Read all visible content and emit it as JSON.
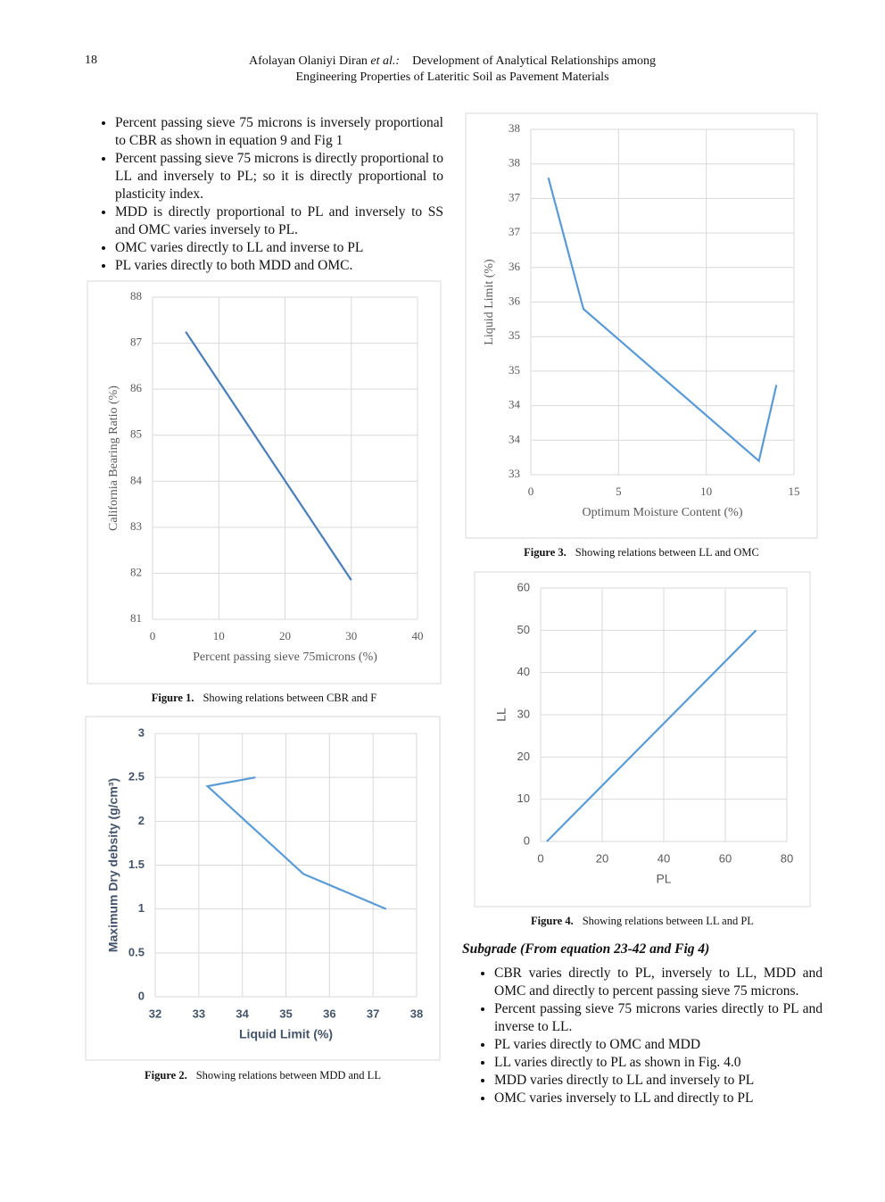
{
  "header": {
    "page_number": "18",
    "authors": "Afolayan Olaniyi Diran",
    "et_al": "et al.:",
    "title_lines": [
      "Development of Analytical Relationships among",
      "Engineering Properties of Lateritic Soil as Pavement Materials"
    ]
  },
  "left_bullets": [
    "Percent passing sieve 75 microns is inversely proportional to CBR as shown in equation 9 and Fig 1",
    "Percent passing sieve 75 microns is directly proportional to LL and inversely to PL; so it is directly proportional to plasticity index.",
    "MDD is directly proportional to PL and inversely to SS and OMC varies inversely to PL.",
    "OMC varies directly to LL and inverse to PL",
    "PL varies directly to both MDD and OMC."
  ],
  "subgrade": {
    "heading": "Subgrade (From equation 23-42 and Fig 4)",
    "bullets": [
      "CBR varies directly to PL, inversely to LL, MDD and OMC and directly to percent passing sieve 75 microns.",
      "Percent passing sieve 75 microns varies directly to PL and inverse to LL.",
      "PL varies directly to OMC and MDD",
      "LL varies directly to PL as shown in Fig. 4.0",
      "MDD varies directly to LL and inversely to PL",
      "OMC varies inversely to LL and directly to PL"
    ]
  },
  "chart_data": [
    {
      "type": "line",
      "caption_label": "Figure 1.",
      "caption": "Showing relations between CBR and F",
      "x_label": "Percent passing sieve 75microns (%)",
      "y_label": "California Bearing Ratio (%)",
      "x": [
        5,
        30
      ],
      "values": [
        87.25,
        81.85
      ],
      "color": "#4a7ebb",
      "xlim": [
        0,
        40
      ],
      "xticks": [
        0,
        10,
        20,
        30,
        40
      ],
      "ylim": [
        81,
        88
      ],
      "yticks": [
        81,
        82,
        83,
        84,
        85,
        86,
        87,
        88
      ],
      "grid": true
    },
    {
      "type": "line",
      "caption_label": "Figure 2.",
      "caption": "Showing relations between MDD and LL",
      "x_label": "Liquid Limit (%)",
      "y_label": "Maximum Dry debsity (g/cm³)",
      "x": [
        34.3,
        33.2,
        35.4,
        37.3
      ],
      "values": [
        2.5,
        2.4,
        1.4,
        1.0
      ],
      "color": "#5b9bd5",
      "xlim": [
        32,
        38
      ],
      "xticks": [
        32,
        33,
        34,
        35,
        36,
        37,
        38
      ],
      "ylim": [
        0,
        3
      ],
      "yticks": [
        0,
        0.5,
        1,
        1.5,
        2,
        2.5,
        3
      ],
      "grid": true
    },
    {
      "type": "line",
      "caption_label": "Figure 3.",
      "caption": "Showing relations between LL and OMC",
      "x_label": "Optimum Moisture Content (%)",
      "y_label": "Liquid Limit (%)",
      "x": [
        1,
        3,
        13,
        14
      ],
      "values": [
        37.3,
        35.4,
        33.2,
        34.3
      ],
      "color": "#5b9bd5",
      "xlim": [
        0,
        15
      ],
      "xticks": [
        0,
        5,
        10,
        15
      ],
      "ylim": [
        33,
        38
      ],
      "yticks": [
        33,
        {
          "value": 33.5,
          "label": "34"
        },
        34,
        {
          "value": 34.5,
          "label": "35"
        },
        35,
        {
          "value": 35.5,
          "label": "36"
        },
        36,
        {
          "value": 36.5,
          "label": "37"
        },
        37,
        {
          "value": 37.5,
          "label": "38"
        },
        38
      ],
      "grid": true
    },
    {
      "type": "line",
      "caption_label": "Figure 4.",
      "caption": "Showing relations between LL and PL",
      "x_label": "PL",
      "y_label": "LL",
      "x": [
        2,
        70
      ],
      "values": [
        0,
        50
      ],
      "color": "#5b9bd5",
      "xlim": [
        0,
        80
      ],
      "xticks": [
        0,
        20,
        40,
        60,
        80
      ],
      "ylim": [
        0,
        60
      ],
      "yticks": [
        0,
        10,
        20,
        30,
        40,
        50,
        60
      ],
      "grid": true
    }
  ]
}
